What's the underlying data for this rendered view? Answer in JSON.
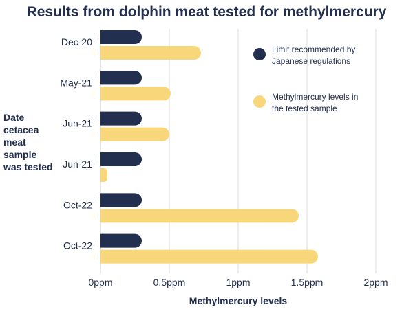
{
  "chart_data": {
    "type": "bar",
    "orientation": "horizontal",
    "title": "Results from dolphin meat tested for methylmercury",
    "xlabel": "Methylmercury levels",
    "ylabel_lines": [
      "Date",
      "cetacea",
      "meat",
      "sample",
      "was tested"
    ],
    "categories": [
      "Dec-20",
      "May-21",
      "Jun-21",
      "Jun-21",
      "Oct-22",
      "Oct-22"
    ],
    "series": [
      {
        "name_lines": [
          "Limit recommended by",
          "Japanese regulations"
        ],
        "color": "#232f4f",
        "values": [
          0.3,
          0.3,
          0.3,
          0.3,
          0.3,
          0.3
        ]
      },
      {
        "name_lines": [
          "Methylmercury levels in",
          "the tested sample"
        ],
        "color": "#f7d77a",
        "values": [
          0.73,
          0.51,
          0.5,
          0.05,
          1.44,
          1.58
        ]
      }
    ],
    "xlim": [
      0,
      2
    ],
    "xticks": [
      0,
      0.5,
      1,
      1.5,
      2
    ],
    "xtick_labels": [
      "0ppm",
      "0.5ppm",
      "1ppm",
      "1.5ppm",
      "2ppm"
    ],
    "grid": "vertical",
    "legend": "right"
  }
}
